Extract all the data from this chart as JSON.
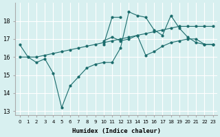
{
  "xlabel": "Humidex (Indice chaleur)",
  "ylabel": "",
  "bg_color": "#d8f0f0",
  "line_color": "#1a6b6b",
  "grid_color": "#ffffff",
  "xlim": [
    -0.5,
    23.5
  ],
  "ylim": [
    12.8,
    19.0
  ],
  "yticks": [
    13,
    14,
    15,
    16,
    17,
    18
  ],
  "xtick_labels": [
    "0",
    "1",
    "2",
    "3",
    "4",
    "5",
    "6",
    "7",
    "8",
    "9",
    "10",
    "11",
    "12",
    "13",
    "14",
    "15",
    "16",
    "17",
    "18",
    "19",
    "20",
    "21",
    "22",
    "23"
  ],
  "series": [
    [
      16.7,
      16.0,
      15.7,
      15.9,
      15.1,
      13.2,
      14.4,
      14.9,
      15.4,
      15.6,
      15.7,
      15.7,
      16.5,
      18.5,
      18.3,
      18.2,
      17.5,
      17.2,
      18.3,
      17.6,
      17.1,
      16.8,
      16.7,
      16.7
    ],
    [
      null,
      null,
      null,
      null,
      null,
      null,
      null,
      null,
      null,
      null,
      16.9,
      17.1,
      16.9,
      17.0,
      17.2,
      16.1,
      16.3,
      16.6,
      16.8,
      16.9,
      17.0,
      17.0,
      16.7,
      16.7
    ],
    [
      null,
      null,
      null,
      null,
      null,
      null,
      null,
      null,
      null,
      null,
      16.7,
      18.2,
      18.2,
      null,
      null,
      null,
      null,
      null,
      null,
      null,
      null,
      null,
      null,
      null
    ],
    [
      16.0,
      16.0,
      16.0,
      16.1,
      16.2,
      16.3,
      16.4,
      16.5,
      16.6,
      16.7,
      16.8,
      16.9,
      17.0,
      17.1,
      17.2,
      17.3,
      17.4,
      17.5,
      17.6,
      17.7,
      17.7,
      17.7,
      17.7,
      17.7
    ]
  ]
}
